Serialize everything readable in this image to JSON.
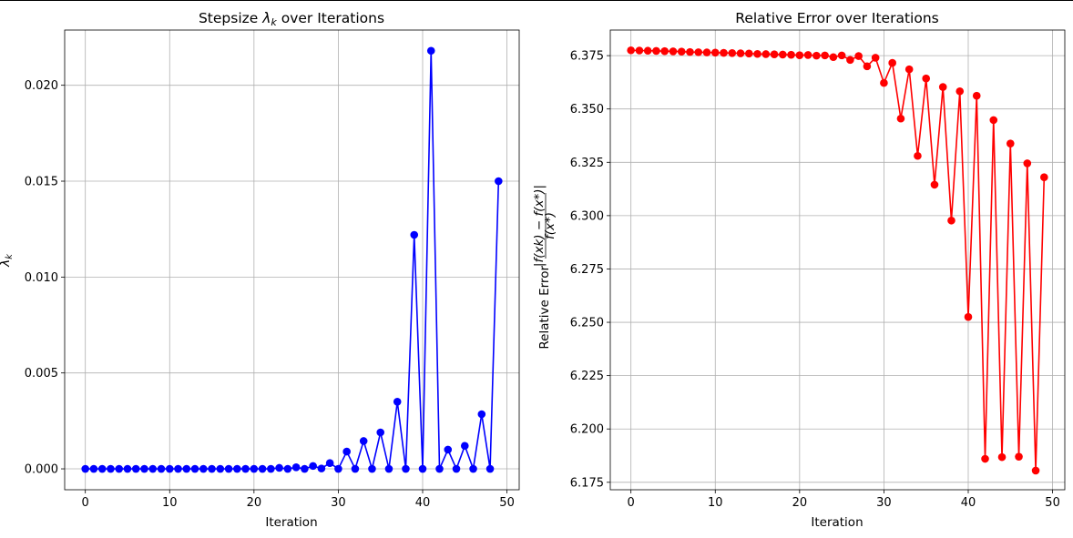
{
  "colors": {
    "stepsize_series": "#0000ff",
    "error_series": "#ff0000",
    "grid": "#b0b0b0"
  },
  "chart_data": [
    {
      "type": "line",
      "markers": "circle",
      "title_parts": [
        "Stepsize ",
        "λ",
        "k",
        " over Iterations"
      ],
      "xlabel": "Iteration",
      "ylabel_parts": [
        "λ",
        "k"
      ],
      "xlim": [
        -2.45,
        51.45
      ],
      "ylim": [
        -0.00109,
        0.02288
      ],
      "xticks": [
        0,
        10,
        20,
        30,
        40,
        50
      ],
      "xtick_labels": [
        "0",
        "10",
        "20",
        "30",
        "40",
        "50"
      ],
      "yticks": [
        0,
        0.005,
        0.01,
        0.015,
        0.02
      ],
      "ytick_labels": [
        "0.000",
        "0.005",
        "0.010",
        "0.015",
        "0.020"
      ],
      "grid": true,
      "color": "#0000ff",
      "series": [
        {
          "x": [
            0,
            1,
            2,
            3,
            4,
            5,
            6,
            7,
            8,
            9,
            10,
            11,
            12,
            13,
            14,
            15,
            16,
            17,
            18,
            19,
            20,
            21,
            22,
            23,
            24,
            25,
            26,
            27,
            28,
            29,
            30,
            31,
            32,
            33,
            34,
            35,
            36,
            37,
            38,
            39,
            40,
            41,
            42,
            43,
            44,
            45,
            46,
            47,
            48,
            49
          ],
          "y": [
            0,
            0,
            0,
            0,
            0,
            0,
            0,
            0,
            0,
            0,
            0,
            0,
            0,
            0,
            0,
            0,
            0,
            0,
            0,
            0,
            0,
            0,
            0,
            5e-05,
            0,
            8e-05,
            0,
            0.00015,
            2e-05,
            0.0003,
            0,
            0.0009,
            0,
            0.00145,
            0,
            0.0019,
            0,
            0.0035,
            0,
            0.0122,
            0,
            0.0218,
            0,
            0.001,
            0,
            0.0012,
            0,
            0.00285,
            0,
            0.015
          ]
        }
      ]
    },
    {
      "type": "line",
      "markers": "circle",
      "title": "Relative Error over Iterations",
      "xlabel": "Iteration",
      "ylabel_prefix": "Relative Error",
      "ylabel_fraction_numerator": "|f(xk) − f(x*)|",
      "ylabel_fraction_denominator": "f(x*)",
      "xlim": [
        -2.45,
        51.45
      ],
      "ylim": [
        6.1715,
        6.387
      ],
      "xticks": [
        0,
        10,
        20,
        30,
        40,
        50
      ],
      "xtick_labels": [
        "0",
        "10",
        "20",
        "30",
        "40",
        "50"
      ],
      "yticks": [
        6.175,
        6.2,
        6.225,
        6.25,
        6.275,
        6.3,
        6.325,
        6.35,
        6.375
      ],
      "ytick_labels": [
        "6.175",
        "6.200",
        "6.225",
        "6.250",
        "6.275",
        "6.300",
        "6.325",
        "6.350",
        "6.375"
      ],
      "grid": true,
      "color": "#ff0000",
      "series": [
        {
          "x": [
            0,
            1,
            2,
            3,
            4,
            5,
            6,
            7,
            8,
            9,
            10,
            11,
            12,
            13,
            14,
            15,
            16,
            17,
            18,
            19,
            20,
            21,
            22,
            23,
            24,
            25,
            26,
            27,
            28,
            29,
            30,
            31,
            32,
            33,
            34,
            35,
            36,
            37,
            38,
            39,
            40,
            41,
            42,
            43,
            44,
            45,
            46,
            47,
            48,
            49
          ],
          "y": [
            6.3775,
            6.3774,
            6.3773,
            6.3772,
            6.3771,
            6.377,
            6.3769,
            6.3767,
            6.3766,
            6.3765,
            6.3764,
            6.3763,
            6.3762,
            6.3761,
            6.376,
            6.3758,
            6.3757,
            6.3756,
            6.3755,
            6.3754,
            6.3752,
            6.3753,
            6.375,
            6.3751,
            6.3743,
            6.3751,
            6.373,
            6.3748,
            6.37,
            6.374,
            6.3622,
            6.3716,
            6.3455,
            6.3686,
            6.328,
            6.3643,
            6.3145,
            6.3603,
            6.2977,
            6.3583,
            6.2525,
            6.3562,
            6.186,
            6.3448,
            6.1868,
            6.3338,
            6.187,
            6.3245,
            6.1805,
            6.318
          ]
        }
      ]
    }
  ]
}
